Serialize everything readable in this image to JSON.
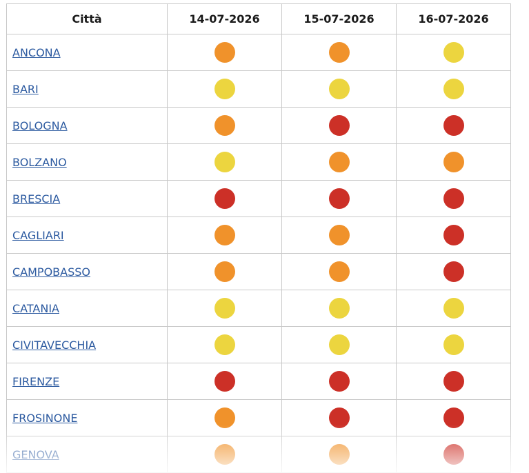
{
  "header": {
    "city_label": "Città",
    "dates": [
      "14-07-2026",
      "15-07-2026",
      "16-07-2026"
    ]
  },
  "levels": {
    "yellow": "#ecd53f",
    "orange": "#f0922b",
    "red": "#cc3027"
  },
  "rows": [
    {
      "city": "ANCONA",
      "levels": [
        "orange",
        "orange",
        "yellow"
      ]
    },
    {
      "city": "BARI",
      "levels": [
        "yellow",
        "yellow",
        "yellow"
      ]
    },
    {
      "city": "BOLOGNA",
      "levels": [
        "orange",
        "red",
        "red"
      ]
    },
    {
      "city": "BOLZANO",
      "levels": [
        "yellow",
        "orange",
        "orange"
      ]
    },
    {
      "city": "BRESCIA",
      "levels": [
        "red",
        "red",
        "red"
      ]
    },
    {
      "city": "CAGLIARI",
      "levels": [
        "orange",
        "orange",
        "red"
      ]
    },
    {
      "city": "CAMPOBASSO",
      "levels": [
        "orange",
        "orange",
        "red"
      ]
    },
    {
      "city": "CATANIA",
      "levels": [
        "yellow",
        "yellow",
        "yellow"
      ]
    },
    {
      "city": "CIVITAVECCHIA",
      "levels": [
        "yellow",
        "yellow",
        "yellow"
      ]
    },
    {
      "city": "FIRENZE",
      "levels": [
        "red",
        "red",
        "red"
      ]
    },
    {
      "city": "FROSINONE",
      "levels": [
        "orange",
        "red",
        "red"
      ]
    },
    {
      "city": "GENOVA",
      "levels": [
        "orange",
        "orange",
        "red"
      ]
    }
  ]
}
